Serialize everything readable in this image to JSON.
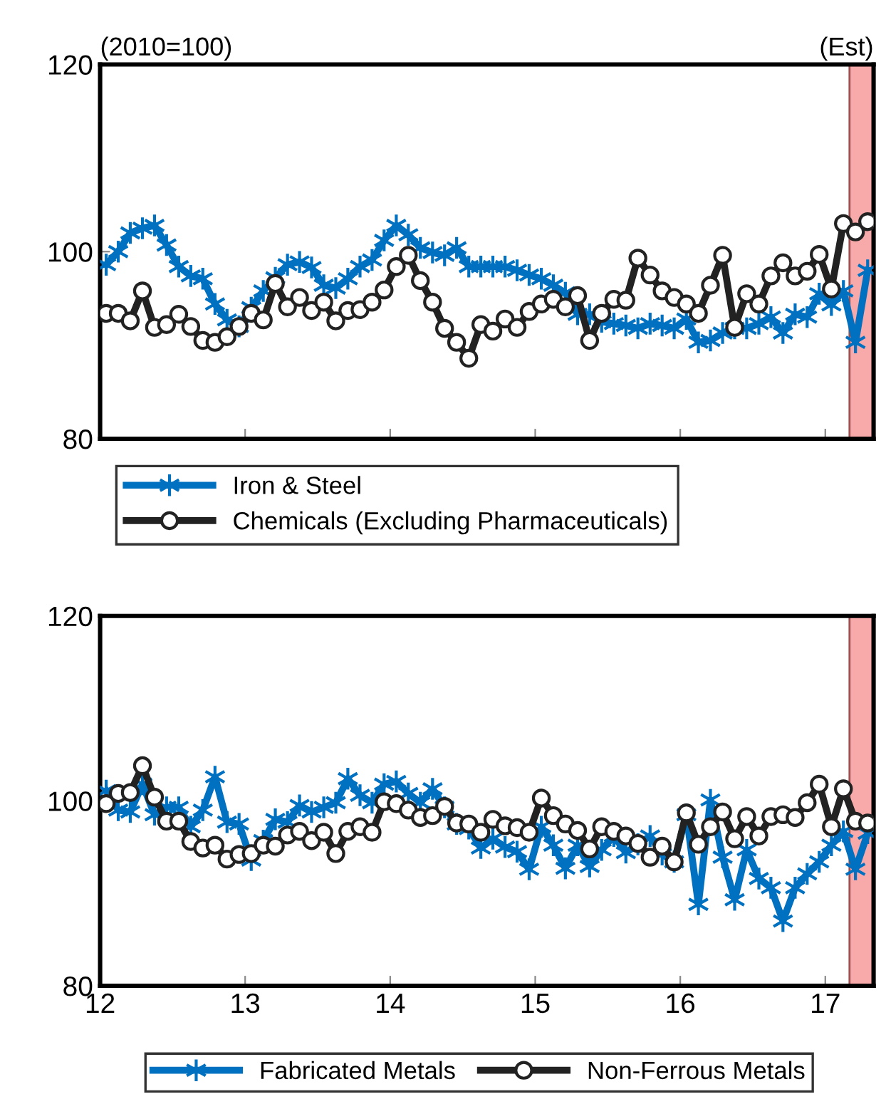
{
  "chart_data": [
    {
      "type": "line",
      "annotations": [
        "(2010=100)"
      ],
      "xlim": [
        12,
        17.333
      ],
      "xticks": [
        12,
        13,
        14,
        15,
        16,
        17
      ],
      "ylim": [
        80,
        120
      ],
      "yticks": [
        80,
        100,
        120
      ],
      "tick_labels": "y",
      "grid": false,
      "legend": "bottom",
      "line_style": "solid",
      "bands": [
        {
          "axis": "x",
          "from": 17.167,
          "to": 17.333,
          "label": "(Est)",
          "color": "#f8a9a9"
        }
      ],
      "x": [
        12.042,
        12.125,
        12.208,
        12.292,
        12.375,
        12.458,
        12.542,
        12.625,
        12.708,
        12.792,
        12.875,
        12.958,
        13.042,
        13.125,
        13.208,
        13.292,
        13.375,
        13.458,
        13.542,
        13.625,
        13.708,
        13.792,
        13.875,
        13.958,
        14.042,
        14.125,
        14.208,
        14.292,
        14.375,
        14.458,
        14.542,
        14.625,
        14.708,
        14.792,
        14.875,
        14.958,
        15.042,
        15.125,
        15.208,
        15.292,
        15.375,
        15.458,
        15.542,
        15.625,
        15.708,
        15.792,
        15.875,
        15.958,
        16.042,
        16.125,
        16.208,
        16.292,
        16.375,
        16.458,
        16.542,
        16.625,
        16.708,
        16.792,
        16.875,
        16.958,
        17.042,
        17.125,
        17.208,
        17.292
      ],
      "series": [
        {
          "name": "Iron & Steel",
          "color": "#0070c0",
          "marker": "cross",
          "values": [
            98.6,
            100.0,
            102.0,
            102.5,
            102.8,
            100.7,
            98.4,
            97.4,
            97.1,
            94.4,
            92.7,
            92.0,
            94.0,
            95.8,
            97.2,
            98.6,
            98.9,
            98.3,
            96.4,
            96.1,
            97.1,
            98.4,
            99.1,
            101.2,
            102.8,
            101.8,
            100.4,
            99.9,
            99.6,
            100.4,
            98.4,
            98.4,
            98.4,
            98.4,
            98.0,
            97.5,
            97.1,
            96.4,
            95.6,
            93.3,
            93.3,
            92.5,
            92.3,
            92.1,
            91.8,
            92.3,
            92.1,
            91.8,
            92.8,
            90.3,
            90.5,
            91.3,
            91.8,
            91.8,
            92.3,
            93.0,
            91.3,
            93.3,
            93.0,
            95.5,
            94.3,
            95.8,
            90.3,
            98.0
          ]
        },
        {
          "name": "Chemicals (Excluding Pharmaceuticals)",
          "color": "#222222",
          "marker": "circle",
          "values": [
            93.4,
            93.4,
            92.6,
            95.8,
            91.9,
            92.2,
            93.3,
            92.0,
            90.5,
            90.3,
            90.9,
            92.0,
            93.4,
            92.7,
            96.6,
            94.1,
            95.1,
            93.7,
            94.6,
            92.6,
            93.7,
            93.8,
            94.6,
            95.9,
            98.4,
            99.6,
            96.9,
            94.6,
            91.8,
            90.3,
            88.6,
            92.2,
            91.5,
            92.8,
            91.9,
            93.6,
            94.4,
            94.9,
            94.1,
            95.3,
            90.5,
            93.4,
            94.9,
            94.8,
            99.3,
            97.5,
            95.8,
            95.1,
            94.4,
            93.4,
            96.4,
            99.6,
            91.9,
            95.5,
            94.4,
            97.4,
            98.8,
            97.4,
            97.9,
            99.7,
            96.0,
            103.0,
            102.1,
            103.2
          ]
        }
      ]
    },
    {
      "type": "line",
      "xlim": [
        12,
        17.333
      ],
      "xticks": [
        12,
        13,
        14,
        15,
        16,
        17
      ],
      "ylim": [
        80,
        120
      ],
      "yticks": [
        80,
        100,
        120
      ],
      "grid": false,
      "legend": "bottom",
      "line_style": "solid",
      "bands": [
        {
          "axis": "x",
          "from": 17.167,
          "to": 17.333,
          "color": "#f8a9a9"
        }
      ],
      "x": [
        12.042,
        12.125,
        12.208,
        12.292,
        12.375,
        12.458,
        12.542,
        12.625,
        12.708,
        12.792,
        12.875,
        12.958,
        13.042,
        13.125,
        13.208,
        13.292,
        13.375,
        13.458,
        13.542,
        13.625,
        13.708,
        13.792,
        13.875,
        13.958,
        14.042,
        14.125,
        14.208,
        14.292,
        14.375,
        14.458,
        14.542,
        14.625,
        14.708,
        14.792,
        14.875,
        14.958,
        15.042,
        15.125,
        15.208,
        15.292,
        15.375,
        15.458,
        15.542,
        15.625,
        15.708,
        15.792,
        15.875,
        15.958,
        16.042,
        16.125,
        16.208,
        16.292,
        16.375,
        16.458,
        16.542,
        16.625,
        16.708,
        16.792,
        16.875,
        16.958,
        17.042,
        17.125,
        17.208,
        17.292
      ],
      "series": [
        {
          "name": "Fabricated Metals",
          "color": "#0070c0",
          "marker": "cross",
          "values": [
            101.1,
            99.0,
            98.8,
            101.8,
            98.5,
            99.3,
            99.3,
            97.2,
            99.0,
            102.6,
            97.7,
            97.5,
            93.6,
            95.7,
            98.0,
            97.7,
            99.5,
            98.8,
            99.3,
            99.8,
            102.4,
            100.6,
            99.8,
            101.8,
            102.1,
            100.8,
            99.8,
            101.3,
            99.3,
            97.5,
            97.0,
            94.9,
            95.9,
            95.0,
            94.5,
            92.6,
            97.2,
            95.2,
            92.7,
            95.2,
            92.9,
            94.7,
            96.2,
            94.4,
            95.3,
            96.2,
            94.2,
            93.4,
            98.5,
            88.8,
            100.1,
            93.9,
            89.3,
            94.7,
            91.6,
            90.6,
            87.0,
            90.6,
            92.1,
            93.4,
            95.2,
            96.7,
            92.6,
            96.5
          ]
        },
        {
          "name": "Non-Ferrous Metals",
          "color": "#222222",
          "marker": "circle",
          "values": [
            99.7,
            100.8,
            100.9,
            103.8,
            100.4,
            97.8,
            97.8,
            95.6,
            94.9,
            95.2,
            93.7,
            94.2,
            94.3,
            95.2,
            95.1,
            96.3,
            96.7,
            95.7,
            96.6,
            94.3,
            96.7,
            97.2,
            96.6,
            99.9,
            99.7,
            99.0,
            98.2,
            98.4,
            99.4,
            97.6,
            97.5,
            96.6,
            98.0,
            97.3,
            97.1,
            96.6,
            100.3,
            98.4,
            97.5,
            96.8,
            94.8,
            97.2,
            96.7,
            96.2,
            95.4,
            93.9,
            95.1,
            93.4,
            98.7,
            95.3,
            97.2,
            98.8,
            95.9,
            98.3,
            96.2,
            98.3,
            98.5,
            98.2,
            99.8,
            101.8,
            97.2,
            101.3,
            97.8,
            97.6
          ]
        }
      ]
    }
  ]
}
